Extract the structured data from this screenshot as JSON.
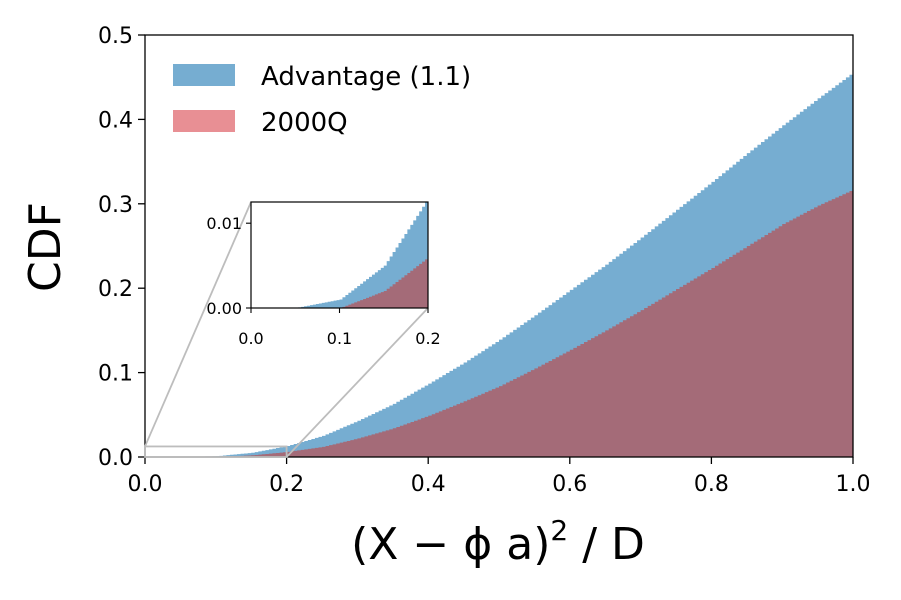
{
  "chart_data": {
    "type": "area",
    "xlabel_base": "(X − ϕ a)",
    "xlabel_exp": "2",
    "xlabel_tail": " / D",
    "ylabel": "CDF",
    "xlim": [
      0.0,
      1.0
    ],
    "ylim": [
      0.0,
      0.5
    ],
    "xticks": [
      "0.0",
      "0.2",
      "0.4",
      "0.6",
      "0.8",
      "1.0"
    ],
    "yticks": [
      "0.0",
      "0.1",
      "0.2",
      "0.3",
      "0.4",
      "0.5"
    ],
    "legend_position": "top-left",
    "x": [
      0.0,
      0.05,
      0.1,
      0.15,
      0.2,
      0.25,
      0.3,
      0.35,
      0.4,
      0.45,
      0.5,
      0.55,
      0.6,
      0.65,
      0.7,
      0.75,
      0.8,
      0.85,
      0.9,
      0.95,
      1.0
    ],
    "series": [
      {
        "name": "Advantage (1.1)",
        "color": "#76add1",
        "values": [
          0.0,
          0.0,
          0.001,
          0.005,
          0.013,
          0.025,
          0.043,
          0.063,
          0.087,
          0.112,
          0.139,
          0.168,
          0.198,
          0.228,
          0.26,
          0.293,
          0.326,
          0.36,
          0.393,
          0.425,
          0.456
        ]
      },
      {
        "name": "2000Q",
        "color": "#e88f94",
        "values": [
          0.0,
          0.0,
          0.0,
          0.002,
          0.006,
          0.012,
          0.022,
          0.034,
          0.049,
          0.066,
          0.084,
          0.105,
          0.127,
          0.15,
          0.174,
          0.199,
          0.224,
          0.25,
          0.276,
          0.298,
          0.317
        ]
      }
    ],
    "overlap_color": "#a46b78",
    "inset": {
      "xlim": [
        0.0,
        0.2
      ],
      "ylim": [
        0.0,
        0.0125
      ],
      "xticks": [
        "0.0",
        "0.1",
        "0.2"
      ],
      "yticks": [
        "0.00",
        "0.01"
      ]
    }
  }
}
